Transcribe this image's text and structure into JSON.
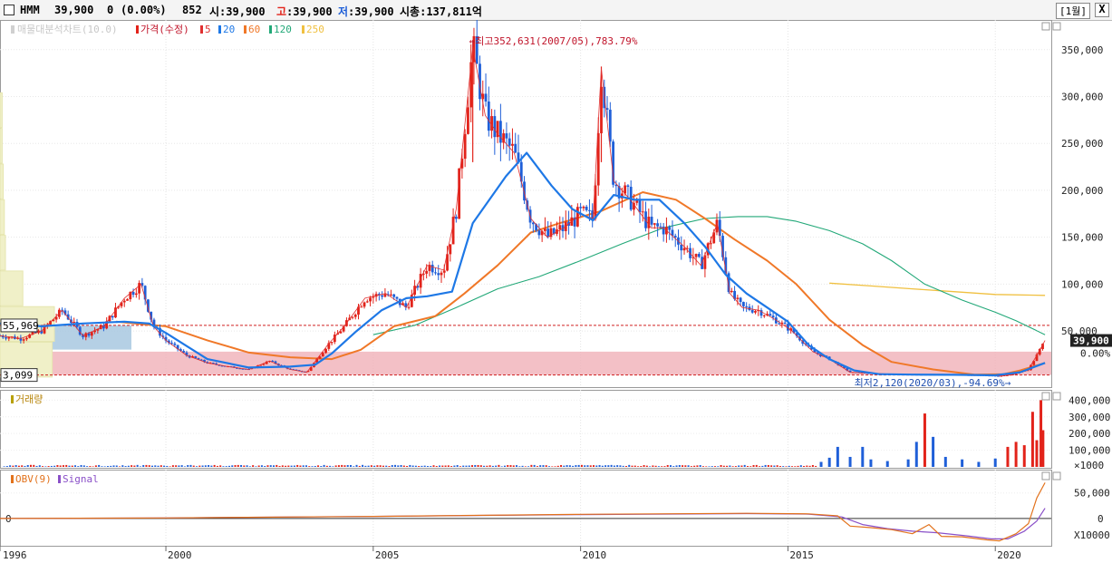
{
  "header": {
    "stock_name": "HMM",
    "price": "39,900",
    "change": "0",
    "change_pct": "(0.00%)",
    "volume": "852",
    "open_label": "시",
    "open": "39,900",
    "high_label": "고",
    "high": "39,900",
    "low_label": "저",
    "low": "39,900",
    "mcap_label": "시총",
    "mcap": "137,811억",
    "period_button": "[1월]",
    "close_button": "X"
  },
  "colors": {
    "up": "#e2231a",
    "down": "#1f5fd8",
    "ma5": "#e03030",
    "ma20": "#1e78e6",
    "ma60": "#f07828",
    "ma120": "#22a878",
    "ma250": "#f0c040",
    "obv": "#e2721c",
    "signal": "#8a50c8",
    "volume_profile": "#f0f0c8",
    "zone_high": "#a8c8e0",
    "zone_low": "#f0b0b8"
  },
  "chart_data": [
    {
      "type": "candlestick",
      "legend": {
        "profile": "매물대분석차트(10.0)",
        "price": "가격(수정)",
        "ma_periods": [
          "5",
          "20",
          "60",
          "120",
          "250"
        ]
      },
      "x_ticks": [
        "1996",
        "2000",
        "2005",
        "2010",
        "2015",
        "2020"
      ],
      "y_ticks": [
        "350,000",
        "300,000",
        "250,000",
        "200,000",
        "150,000",
        "100,000",
        "50,000",
        "0.00%"
      ],
      "ylim": [
        -5000,
        372000
      ],
      "current_price_label": "39,900",
      "current_pct_label": "0.00%",
      "level_labels": [
        "55,969",
        "3,099"
      ],
      "reference_levels": [
        55969,
        3099
      ],
      "annotation_high": "최고352,631(2007/05),783.79%",
      "annotation_low": "최저2,120(2020/03),-94.69%",
      "high_point": {
        "date": "2007/05",
        "value": 352631
      },
      "low_point": {
        "date": "2020/03",
        "value": 2120
      },
      "price_series": [
        [
          "1996.0",
          45000
        ],
        [
          "1996.5",
          42000
        ],
        [
          "1997.0",
          50000
        ],
        [
          "1997.5",
          72000
        ],
        [
          "1998.0",
          45000
        ],
        [
          "1998.5",
          55000
        ],
        [
          "1999.0",
          85000
        ],
        [
          "1999.4",
          100000
        ],
        [
          "1999.7",
          55000
        ],
        [
          "2000.0",
          40000
        ],
        [
          "2000.5",
          24000
        ],
        [
          "2001.0",
          16000
        ],
        [
          "2001.5",
          12000
        ],
        [
          "2002.0",
          9000
        ],
        [
          "2002.5",
          18000
        ],
        [
          "2003.0",
          9000
        ],
        [
          "2003.4",
          6000
        ],
        [
          "2003.9",
          35000
        ],
        [
          "2004.3",
          55000
        ],
        [
          "2004.8",
          85000
        ],
        [
          "2005.3",
          90000
        ],
        [
          "2005.8",
          75000
        ],
        [
          "2006.3",
          120000
        ],
        [
          "2006.7",
          115000
        ],
        [
          "2007.0",
          180000
        ],
        [
          "2007.4",
          352631
        ],
        [
          "2007.7",
          280000
        ],
        [
          "2008.0",
          260000
        ],
        [
          "2008.4",
          240000
        ],
        [
          "2008.8",
          170000
        ],
        [
          "2009.2",
          150000
        ],
        [
          "2009.6",
          160000
        ],
        [
          "2010.0",
          175000
        ],
        [
          "2010.3",
          170000
        ],
        [
          "2010.5",
          330000
        ],
        [
          "2010.8",
          210000
        ],
        [
          "2011.2",
          190000
        ],
        [
          "2011.7",
          160000
        ],
        [
          "2012.0",
          160000
        ],
        [
          "2012.5",
          140000
        ],
        [
          "2012.9",
          120000
        ],
        [
          "2013.3",
          165000
        ],
        [
          "2013.6",
          90000
        ],
        [
          "2013.9",
          75000
        ],
        [
          "2014.3",
          72000
        ],
        [
          "2014.7",
          62000
        ],
        [
          "2015.1",
          50000
        ],
        [
          "2015.6",
          28000
        ],
        [
          "2016.0",
          20000
        ],
        [
          "2016.5",
          6000
        ],
        [
          "2017.0",
          5000
        ],
        [
          "2017.5",
          4000
        ],
        [
          "2018.0",
          3800
        ],
        [
          "2018.5",
          3500
        ],
        [
          "2019.0",
          3500
        ],
        [
          "2019.5",
          3000
        ],
        [
          "2020.1",
          2120
        ],
        [
          "2020.4",
          3500
        ],
        [
          "2020.8",
          9000
        ],
        [
          "2021.0",
          24000
        ],
        [
          "2021.2",
          39900
        ]
      ],
      "ma20_series": [
        [
          "1996.0",
          58000
        ],
        [
          "1997.0",
          55000
        ],
        [
          "1998.0",
          58000
        ],
        [
          "1999.0",
          60000
        ],
        [
          "1999.6",
          58000
        ],
        [
          "2000.0",
          48000
        ],
        [
          "2001.0",
          20000
        ],
        [
          "2002.0",
          11000
        ],
        [
          "2003.0",
          12000
        ],
        [
          "2003.6",
          14000
        ],
        [
          "2004.0",
          26000
        ],
        [
          "2004.6",
          50000
        ],
        [
          "2005.2",
          72000
        ],
        [
          "2005.8",
          85000
        ],
        [
          "2006.3",
          87000
        ],
        [
          "2006.9",
          92000
        ],
        [
          "2007.4",
          165000
        ],
        [
          "2008.2",
          215000
        ],
        [
          "2008.7",
          240000
        ],
        [
          "2009.3",
          205000
        ],
        [
          "2009.8",
          180000
        ],
        [
          "2010.3",
          168000
        ],
        [
          "2010.8",
          195000
        ],
        [
          "2011.3",
          190000
        ],
        [
          "2011.9",
          190000
        ],
        [
          "2012.5",
          165000
        ],
        [
          "2013.0",
          140000
        ],
        [
          "2013.5",
          110000
        ],
        [
          "2014.0",
          90000
        ],
        [
          "2014.5",
          75000
        ],
        [
          "2015.0",
          60000
        ],
        [
          "2015.5",
          35000
        ],
        [
          "2016.0",
          20000
        ],
        [
          "2016.6",
          8000
        ],
        [
          "2017.2",
          4000
        ],
        [
          "2018.0",
          3500
        ],
        [
          "2019.0",
          3300
        ],
        [
          "2020.0",
          2800
        ],
        [
          "2020.6",
          6000
        ],
        [
          "2021.2",
          16000
        ]
      ],
      "ma60_series": [
        [
          "1998.8",
          60000
        ],
        [
          "1999.5",
          57000
        ],
        [
          "2000.0",
          55000
        ],
        [
          "2001.0",
          40000
        ],
        [
          "2002.0",
          27000
        ],
        [
          "2003.0",
          22000
        ],
        [
          "2004.0",
          20000
        ],
        [
          "2004.7",
          30000
        ],
        [
          "2005.5",
          55000
        ],
        [
          "2006.5",
          66000
        ],
        [
          "2007.2",
          90000
        ],
        [
          "2008.0",
          120000
        ],
        [
          "2008.8",
          155000
        ],
        [
          "2009.5",
          165000
        ],
        [
          "2010.5",
          178000
        ],
        [
          "2011.5",
          198000
        ],
        [
          "2012.3",
          190000
        ],
        [
          "2013.0",
          170000
        ],
        [
          "2013.7",
          148000
        ],
        [
          "2014.5",
          125000
        ],
        [
          "2015.2",
          100000
        ],
        [
          "2016.0",
          62000
        ],
        [
          "2016.8",
          35000
        ],
        [
          "2017.5",
          17000
        ],
        [
          "2018.5",
          9000
        ],
        [
          "2019.5",
          3500
        ],
        [
          "2020.2",
          4000
        ],
        [
          "2020.6",
          8000
        ],
        [
          "2021.2",
          16000
        ]
      ],
      "ma120_series": [
        [
          "2005.0",
          46000
        ],
        [
          "2006.0",
          56000
        ],
        [
          "2007.0",
          75000
        ],
        [
          "2008.0",
          95000
        ],
        [
          "2009.0",
          108000
        ],
        [
          "2010.0",
          125000
        ],
        [
          "2011.0",
          143000
        ],
        [
          "2012.0",
          160000
        ],
        [
          "2013.0",
          170000
        ],
        [
          "2013.8",
          172000
        ],
        [
          "2014.5",
          172000
        ],
        [
          "2015.2",
          167000
        ],
        [
          "2016.0",
          157000
        ],
        [
          "2016.8",
          143000
        ],
        [
          "2017.5",
          125000
        ],
        [
          "2018.3",
          100000
        ],
        [
          "2019.2",
          83000
        ],
        [
          "2020.0",
          70000
        ],
        [
          "2020.5",
          61000
        ],
        [
          "2021.2",
          46000
        ]
      ],
      "ma250_series": [
        [
          "2016.0",
          101000
        ],
        [
          "2017.0",
          98000
        ],
        [
          "2018.0",
          95000
        ],
        [
          "2019.0",
          92000
        ],
        [
          "2020.0",
          89000
        ],
        [
          "2021.2",
          88000
        ]
      ],
      "volume_profile": [
        {
          "price_from": 0,
          "price_to": 38000,
          "strength": 0.48
        },
        {
          "price_from": 38000,
          "price_to": 76000,
          "strength": 0.5
        },
        {
          "price_from": 76000,
          "price_to": 114000,
          "strength": 0.21
        },
        {
          "price_from": 114000,
          "price_to": 152000,
          "strength": 0.05
        },
        {
          "price_from": 152000,
          "price_to": 190000,
          "strength": 0.04
        },
        {
          "price_from": 190000,
          "price_to": 228000,
          "strength": 0.03
        },
        {
          "price_from": 228000,
          "price_to": 266000,
          "strength": 0.02
        },
        {
          "price_from": 266000,
          "price_to": 304000,
          "strength": 0.02
        }
      ]
    },
    {
      "type": "bar",
      "legend": "거래량",
      "y_ticks": [
        "400,000",
        "300,000",
        "200,000",
        "100,000"
      ],
      "unit_label": "×1000",
      "ylim": [
        0,
        440000
      ],
      "bars": [
        [
          "2015.8",
          30000,
          "down"
        ],
        [
          "2016.0",
          55000,
          "down"
        ],
        [
          "2016.2",
          120000,
          "down"
        ],
        [
          "2016.5",
          60000,
          "down"
        ],
        [
          "2016.8",
          120000,
          "down"
        ],
        [
          "2017.0",
          45000,
          "down"
        ],
        [
          "2017.4",
          35000,
          "down"
        ],
        [
          "2017.9",
          45000,
          "down"
        ],
        [
          "2018.1",
          150000,
          "down"
        ],
        [
          "2018.3",
          320000,
          "up"
        ],
        [
          "2018.5",
          180000,
          "down"
        ],
        [
          "2018.8",
          60000,
          "down"
        ],
        [
          "2019.2",
          45000,
          "down"
        ],
        [
          "2019.6",
          30000,
          "down"
        ],
        [
          "2020.0",
          50000,
          "down"
        ],
        [
          "2020.3",
          120000,
          "up"
        ],
        [
          "2020.5",
          150000,
          "up"
        ],
        [
          "2020.7",
          130000,
          "up"
        ],
        [
          "2020.9",
          330000,
          "up"
        ],
        [
          "2021.0",
          160000,
          "up"
        ],
        [
          "2021.1",
          400000,
          "up"
        ],
        [
          "2021.15",
          220000,
          "up"
        ]
      ]
    },
    {
      "type": "line",
      "legend": [
        "OBV(9)",
        "Signal"
      ],
      "y_ticks": [
        "50,000",
        "0"
      ],
      "unit_label": "X10000",
      "ylim": [
        -50000,
        85000
      ],
      "zero_label": "0",
      "obv_series": [
        [
          "1996.0",
          0
        ],
        [
          "2000.0",
          1000
        ],
        [
          "2005.0",
          4000
        ],
        [
          "2010.0",
          8000
        ],
        [
          "2014.0",
          10000
        ],
        [
          "2015.5",
          9000
        ],
        [
          "2016.2",
          5000
        ],
        [
          "2016.5",
          -15000
        ],
        [
          "2017.0",
          -18000
        ],
        [
          "2017.5",
          -22000
        ],
        [
          "2018.0",
          -30000
        ],
        [
          "2018.4",
          -12000
        ],
        [
          "2018.7",
          -35000
        ],
        [
          "2019.2",
          -36000
        ],
        [
          "2019.8",
          -42000
        ],
        [
          "2020.1",
          -44000
        ],
        [
          "2020.5",
          -30000
        ],
        [
          "2020.8",
          -10000
        ],
        [
          "2021.0",
          40000
        ],
        [
          "2021.2",
          70000
        ]
      ],
      "signal_series": [
        [
          "1996.0",
          0
        ],
        [
          "2000.0",
          1000
        ],
        [
          "2005.0",
          4000
        ],
        [
          "2010.0",
          7500
        ],
        [
          "2014.0",
          9500
        ],
        [
          "2015.5",
          8500
        ],
        [
          "2016.3",
          3000
        ],
        [
          "2016.8",
          -12000
        ],
        [
          "2017.4",
          -20000
        ],
        [
          "2018.0",
          -25000
        ],
        [
          "2018.6",
          -28000
        ],
        [
          "2019.3",
          -34000
        ],
        [
          "2019.9",
          -40000
        ],
        [
          "2020.3",
          -40000
        ],
        [
          "2020.7",
          -25000
        ],
        [
          "2021.0",
          -5000
        ],
        [
          "2021.2",
          20000
        ]
      ]
    }
  ]
}
